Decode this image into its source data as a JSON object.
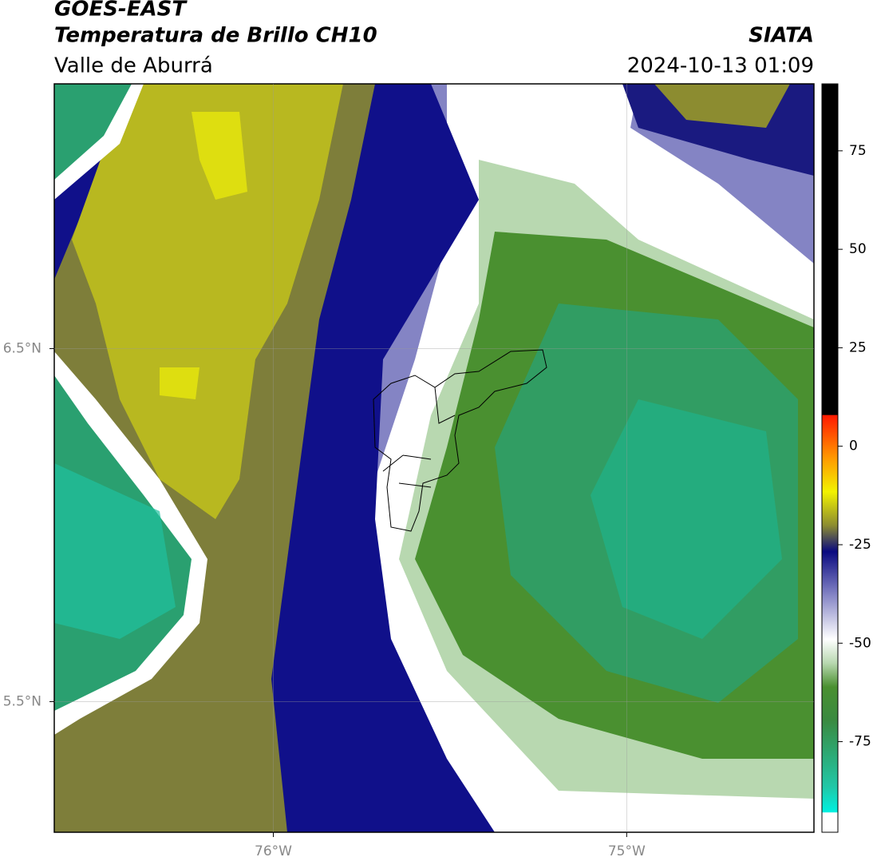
{
  "header": {
    "title": "GOES-EAST",
    "subtitle": "Temperatura de Brillo CH10",
    "region": "Valle de Aburrá",
    "source": "SIATA",
    "datetime": "2024-10-13 01:09"
  },
  "map": {
    "xlim": [
      -76.62,
      -74.47
    ],
    "ylim": [
      5.13,
      7.25
    ],
    "xticks": [
      {
        "value": -76,
        "label": "76°W"
      },
      {
        "value": -75,
        "label": "75°W"
      }
    ],
    "yticks": [
      {
        "value": 6.5,
        "label": "6.5°N"
      },
      {
        "value": 5.5,
        "label": "5.5°N"
      }
    ],
    "grid": true
  },
  "colorbar": {
    "lim": [
      -98,
      92
    ],
    "ticks": [
      75,
      50,
      25,
      0,
      -25,
      -50,
      -75
    ]
  }
}
